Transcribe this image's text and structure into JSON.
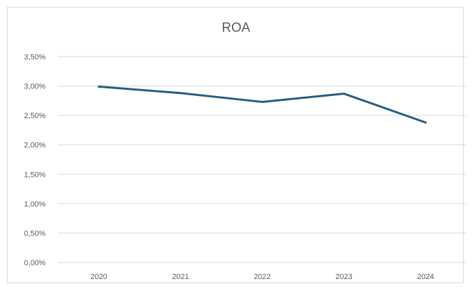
{
  "chart_data": {
    "type": "line",
    "title": "ROA",
    "xlabel": "",
    "ylabel": "",
    "categories": [
      "2020",
      "2021",
      "2022",
      "2023",
      "2024"
    ],
    "series": [
      {
        "values": [
          2.99,
          2.88,
          2.73,
          2.87,
          2.38
        ],
        "color": "#255e80"
      }
    ],
    "ylim": [
      0,
      3.5
    ],
    "yticks": [
      0,
      0.5,
      1.0,
      1.5,
      2.0,
      2.5,
      3.0,
      3.5
    ],
    "ytick_labels": [
      "0,00%",
      "0,50%",
      "1,00%",
      "1,50%",
      "2,00%",
      "2,50%",
      "3,00%",
      "3,50%"
    ],
    "grid": true,
    "legend": "none"
  }
}
